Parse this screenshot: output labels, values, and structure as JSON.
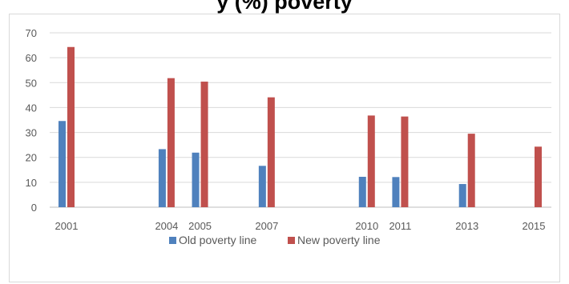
{
  "title_fragment": "y             (%)                       poverty",
  "chart_data": {
    "type": "bar",
    "categories": [
      "2001",
      "2004",
      "2005",
      "2007",
      "2010",
      "2011",
      "2013",
      "2015"
    ],
    "x_years": [
      2001,
      2004,
      2005,
      2007,
      2010,
      2011,
      2013,
      2015
    ],
    "series": [
      {
        "name": "Old poverty line",
        "color": "#4f81bd",
        "values": [
          34.6,
          23.3,
          21.9,
          16.6,
          12.2,
          12.1,
          9.3,
          null
        ]
      },
      {
        "name": "New poverty line",
        "color": "#c0504d",
        "values": [
          64.3,
          51.8,
          50.4,
          44.1,
          36.8,
          36.4,
          29.5,
          24.3
        ]
      }
    ],
    "ylim": [
      0,
      70
    ],
    "yticks": [
      0,
      10,
      20,
      30,
      40,
      50,
      60,
      70
    ],
    "grid": true,
    "legend_position": "bottom"
  }
}
